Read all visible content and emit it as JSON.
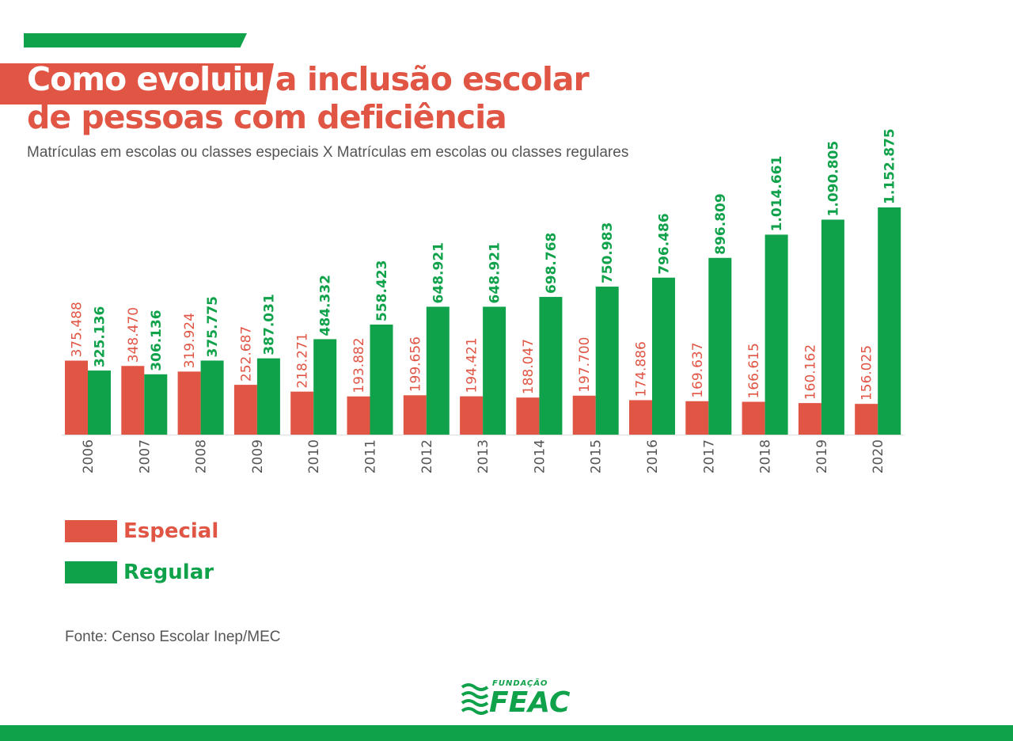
{
  "header": {
    "title_highlight": "Como evoluiu",
    "title_rest": "a inclusão escolar",
    "title_line2": "de pessoas com deficiência",
    "subtitle": "Matrículas em escolas ou classes especiais X Matrículas em escolas ou classes regulares"
  },
  "colors": {
    "especial": "#e05544",
    "regular": "#0fa24a",
    "axis": "#555555"
  },
  "legend": {
    "especial": "Especial",
    "regular": "Regular"
  },
  "source": "Fonte: Censo Escolar Inep/MEC",
  "logo": {
    "small": "FUNDAÇÃO",
    "big": "FEAC"
  },
  "chart_data": {
    "type": "bar",
    "categories": [
      "2006",
      "2007",
      "2008",
      "2009",
      "2010",
      "2011",
      "2012",
      "2013",
      "2014",
      "2015",
      "2016",
      "2017",
      "2018",
      "2019",
      "2020"
    ],
    "series": [
      {
        "name": "Especial",
        "values": [
          375488,
          348470,
          319924,
          252687,
          218271,
          193882,
          199656,
          194421,
          188047,
          197700,
          174886,
          169637,
          166615,
          160162,
          156025
        ],
        "labels": [
          "375.488",
          "348.470",
          "319.924",
          "252.687",
          "218.271",
          "193.882",
          "199.656",
          "194.421",
          "188.047",
          "197.700",
          "174.886",
          "169.637",
          "166.615",
          "160.162",
          "156.025"
        ]
      },
      {
        "name": "Regular",
        "values": [
          325136,
          306136,
          375775,
          387031,
          484332,
          558423,
          648921,
          648921,
          698768,
          750983,
          796486,
          896809,
          1014661,
          1090805,
          1152875
        ],
        "labels": [
          "325.136",
          "306.136",
          "375.775",
          "387.031",
          "484.332",
          "558.423",
          "648.921",
          "648.921",
          "698.768",
          "750.983",
          "796.486",
          "896.809",
          "1.014.661",
          "1.090.805",
          "1.152.875"
        ]
      }
    ],
    "ylim": [
      0,
      1152875
    ],
    "grid": false,
    "legend_position": "bottom-left"
  }
}
